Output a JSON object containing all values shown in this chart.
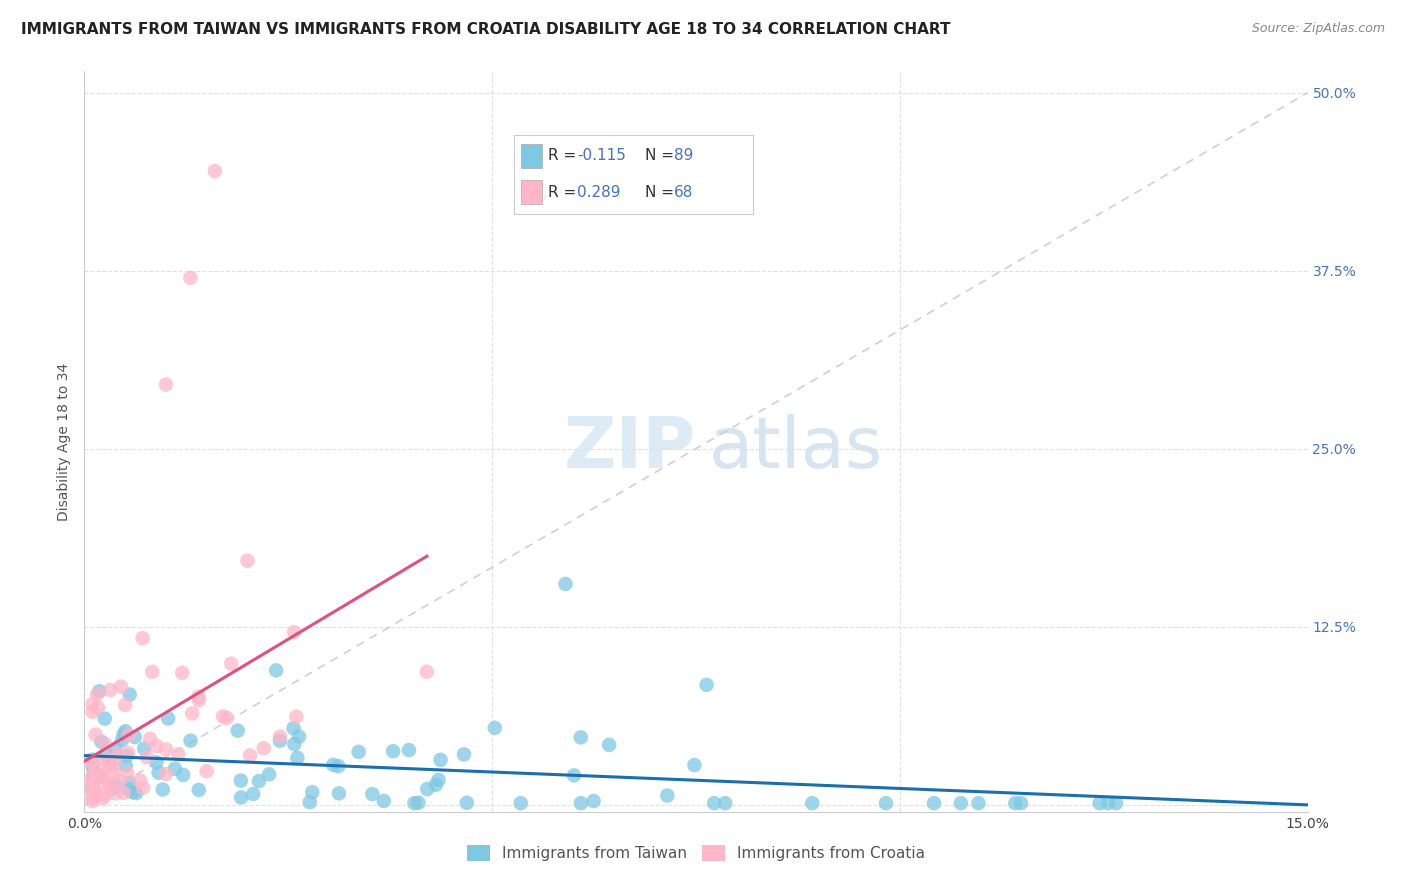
{
  "title": "IMMIGRANTS FROM TAIWAN VS IMMIGRANTS FROM CROATIA DISABILITY AGE 18 TO 34 CORRELATION CHART",
  "source": "Source: ZipAtlas.com",
  "ylabel": "Disability Age 18 to 34",
  "xmin": 0.0,
  "xmax": 0.15,
  "ymin": -0.005,
  "ymax": 0.515,
  "yticks": [
    0.0,
    0.125,
    0.25,
    0.375,
    0.5
  ],
  "ytick_labels_right": [
    "",
    "12.5%",
    "25.0%",
    "37.5%",
    "50.0%"
  ],
  "xticks": [
    0.0,
    0.05,
    0.1,
    0.15
  ],
  "xtick_labels": [
    "0.0%",
    "",
    "",
    "15.0%"
  ],
  "legend_label1": "Immigrants from Taiwan",
  "legend_label2": "Immigrants from Croatia",
  "R_taiwan": -0.115,
  "N_taiwan": 89,
  "R_croatia": 0.289,
  "N_croatia": 68,
  "color_taiwan": "#7ec8e3",
  "color_croatia": "#ffb6c8",
  "color_taiwan_line": "#1a6faf",
  "color_croatia_line": "#e05080",
  "color_diag_line": "#d0d0d0",
  "background_color": "#ffffff",
  "watermark_zip": "ZIP",
  "watermark_atlas": "atlas",
  "title_fontsize": 11,
  "source_fontsize": 9,
  "axis_label_fontsize": 10,
  "tick_fontsize": 10,
  "legend_fontsize": 11
}
